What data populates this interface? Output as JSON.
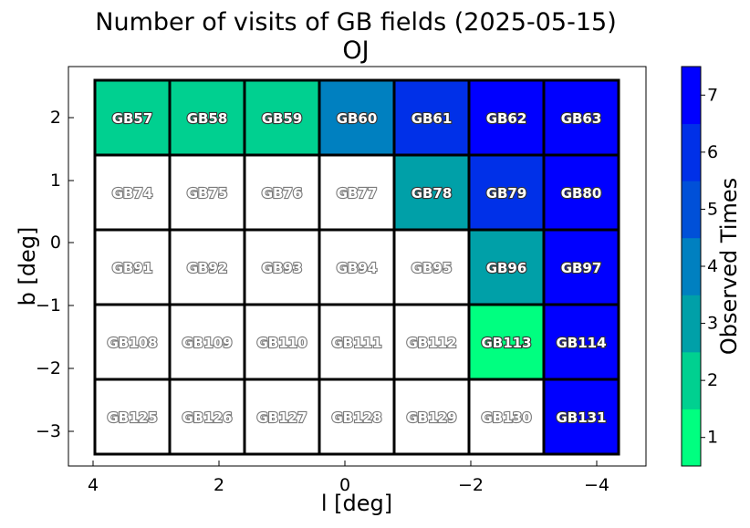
{
  "chart_data": {
    "type": "heatmap",
    "title": "Number of visits of GB fields (2025-05-15)",
    "subtitle": "OJ",
    "xlabel": "l [deg]",
    "ylabel": "b [deg]",
    "xticks": [
      "4",
      "2",
      "0",
      "−2",
      "−4"
    ],
    "yticks": [
      "2",
      "1",
      "0",
      "−1",
      "−2",
      "−3"
    ],
    "colorbar": {
      "label": "Observed Times",
      "ticks": [
        "1",
        "2",
        "3",
        "4",
        "5",
        "6",
        "7"
      ],
      "range": [
        0.5,
        7.5
      ],
      "colors": [
        "#00ff80",
        "#00d090",
        "#00a0a8",
        "#0080c0",
        "#0050d8",
        "#0030e8",
        "#0000ff"
      ]
    },
    "rows": [
      [
        {
          "name": "GB57",
          "visits": 2
        },
        {
          "name": "GB58",
          "visits": 2
        },
        {
          "name": "GB59",
          "visits": 2
        },
        {
          "name": "GB60",
          "visits": 4
        },
        {
          "name": "GB61",
          "visits": 6
        },
        {
          "name": "GB62",
          "visits": 7
        },
        {
          "name": "GB63",
          "visits": 7
        }
      ],
      [
        {
          "name": "GB74",
          "visits": 0
        },
        {
          "name": "GB75",
          "visits": 0
        },
        {
          "name": "GB76",
          "visits": 0
        },
        {
          "name": "GB77",
          "visits": 0
        },
        {
          "name": "GB78",
          "visits": 3
        },
        {
          "name": "GB79",
          "visits": 6
        },
        {
          "name": "GB80",
          "visits": 7
        }
      ],
      [
        {
          "name": "GB91",
          "visits": 0
        },
        {
          "name": "GB92",
          "visits": 0
        },
        {
          "name": "GB93",
          "visits": 0
        },
        {
          "name": "GB94",
          "visits": 0
        },
        {
          "name": "GB95",
          "visits": 0
        },
        {
          "name": "GB96",
          "visits": 3
        },
        {
          "name": "GB97",
          "visits": 7
        }
      ],
      [
        {
          "name": "GB108",
          "visits": 0
        },
        {
          "name": "GB109",
          "visits": 0
        },
        {
          "name": "GB110",
          "visits": 0
        },
        {
          "name": "GB111",
          "visits": 0
        },
        {
          "name": "GB112",
          "visits": 0
        },
        {
          "name": "GB113",
          "visits": 1
        },
        {
          "name": "GB114",
          "visits": 7
        }
      ],
      [
        {
          "name": "GB125",
          "visits": 0
        },
        {
          "name": "GB126",
          "visits": 0
        },
        {
          "name": "GB127",
          "visits": 0
        },
        {
          "name": "GB128",
          "visits": 0
        },
        {
          "name": "GB129",
          "visits": 0
        },
        {
          "name": "GB130",
          "visits": 0
        },
        {
          "name": "GB131",
          "visits": 7
        }
      ]
    ]
  }
}
